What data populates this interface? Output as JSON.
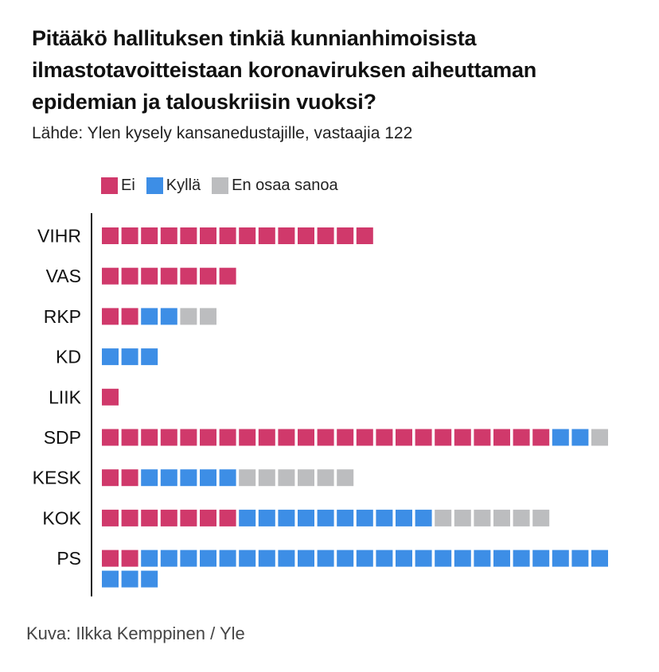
{
  "header": {
    "title": "Pitääkö hallituksen tinkiä kunnianhimoisista ilmastotavoitteistaan koronaviruksen aiheuttaman epidemian ja talouskriisin vuoksi?",
    "source": "Lähde: Ylen kysely kansanedustajille, vastaajia 122"
  },
  "colors": {
    "ei": "#d0396b",
    "kylla": "#3d8ee6",
    "en_osaa_sanoa": "#bcbdbf"
  },
  "legend": [
    {
      "label": "Ei",
      "color_key": "ei"
    },
    {
      "label": "Kyllä",
      "color_key": "kylla"
    },
    {
      "label": "En osaa sanoa",
      "color_key": "en_osaa_sanoa"
    }
  ],
  "chart_data": {
    "type": "bar",
    "subtype": "waffle-unit",
    "categories": [
      "VIHR",
      "VAS",
      "RKP",
      "KD",
      "LIIK",
      "SDP",
      "KESK",
      "KOK",
      "PS"
    ],
    "series": [
      {
        "name": "Ei",
        "color_key": "ei",
        "values": [
          14,
          7,
          2,
          0,
          1,
          23,
          2,
          7,
          2
        ]
      },
      {
        "name": "Kyllä",
        "color_key": "kylla",
        "values": [
          0,
          0,
          2,
          3,
          0,
          2,
          5,
          10,
          27
        ]
      },
      {
        "name": "En osaa sanoa",
        "color_key": "en_osaa_sanoa",
        "values": [
          0,
          0,
          2,
          0,
          0,
          1,
          6,
          6,
          0
        ]
      }
    ],
    "units_per_row": 26,
    "legend_position": "top-left"
  },
  "footer": {
    "credit": "Kuva: Ilkka Kemppinen / Yle"
  }
}
